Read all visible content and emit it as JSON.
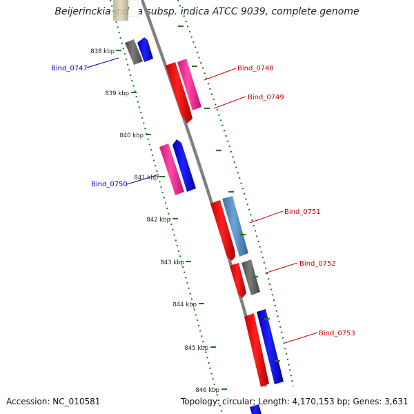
{
  "title": "Beijerinckia indica subsp. indica ATCC 9039, complete genome",
  "footer": {
    "accession": "Accession: NC_010581",
    "summary": "Topology: circular; Length: 4,170,153 bp; Genes: 3,631"
  },
  "colors": {
    "backbone": "#888888",
    "ticks": "#1a7a1a",
    "red_gene": "#ff0000",
    "pink_gene": "#ff3399",
    "blue_gene": "#0000ff",
    "gray_gene": "#666666",
    "steelblue_gene": "#4a86b8",
    "label_red": "#cc0000",
    "label_blue": "#0000bb"
  },
  "scale_ticks": [
    {
      "label": "838 kbp",
      "kbp": 838
    },
    {
      "label": "839 kbp",
      "kbp": 839
    },
    {
      "label": "840 kbp",
      "kbp": 840
    },
    {
      "label": "841 kbp",
      "kbp": 841
    },
    {
      "label": "842 kbp",
      "kbp": 842
    },
    {
      "label": "843 kbp",
      "kbp": 843
    },
    {
      "label": "844 kbp",
      "kbp": 844
    },
    {
      "label": "845 kbp",
      "kbp": 845
    },
    {
      "label": "846 kbp",
      "kbp": 846
    }
  ],
  "gene_labels": [
    {
      "text": "Bind_0747",
      "color": "label_blue"
    },
    {
      "text": "Bind_0748",
      "color": "label_red"
    },
    {
      "text": "Bind_0749",
      "color": "label_red"
    },
    {
      "text": "Bind_0750",
      "color": "label_blue"
    },
    {
      "text": "Bind_0751",
      "color": "label_red"
    },
    {
      "text": "Bind_0752",
      "color": "label_red"
    },
    {
      "text": "Bind_0753",
      "color": "label_red"
    }
  ]
}
